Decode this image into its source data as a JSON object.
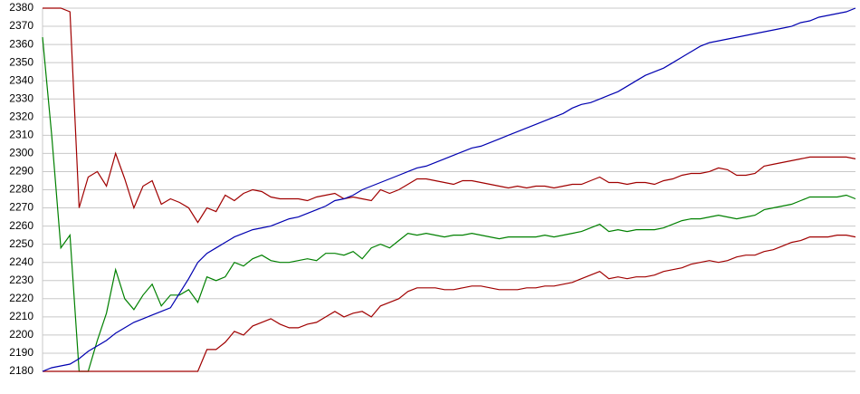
{
  "chart_data": {
    "type": "line",
    "x": [
      0,
      1,
      2,
      3,
      4,
      5,
      6,
      7,
      8,
      9,
      10,
      11,
      12,
      13,
      14,
      15,
      16,
      17,
      18,
      19,
      20,
      21,
      22,
      23,
      24,
      25,
      26,
      27,
      28,
      29,
      30,
      31,
      32,
      33,
      34,
      35,
      36,
      37,
      38,
      39,
      40,
      41,
      42,
      43,
      44,
      45,
      46,
      47,
      48,
      49,
      50,
      51,
      52,
      53,
      54,
      55,
      56,
      57,
      58,
      59,
      60,
      61,
      62,
      63,
      64,
      65,
      66,
      67,
      68,
      69,
      70,
      71,
      72,
      73,
      74,
      75,
      76,
      77,
      78,
      79,
      80,
      81,
      82,
      83,
      84,
      85,
      86,
      87,
      88,
      89
    ],
    "xlim": [
      0,
      89
    ],
    "ylim": [
      2180,
      2380
    ],
    "yticks": [
      2180,
      2190,
      2200,
      2210,
      2220,
      2230,
      2240,
      2250,
      2260,
      2270,
      2280,
      2290,
      2300,
      2310,
      2320,
      2330,
      2340,
      2350,
      2360,
      2370,
      2380
    ],
    "grid": true,
    "series": [
      {
        "color": "#a00000",
        "values": [
          2380,
          2380,
          2380,
          2378,
          2270,
          2287,
          2290,
          2282,
          2300,
          2286,
          2270,
          2282,
          2285,
          2272,
          2275,
          2273,
          2270,
          2262,
          2270,
          2268,
          2277,
          2274,
          2278,
          2280,
          2279,
          2276,
          2275,
          2275,
          2275,
          2274,
          2276,
          2277,
          2278,
          2275,
          2276,
          2275,
          2274,
          2280,
          2278,
          2280,
          2283,
          2286,
          2286,
          2285,
          2284,
          2283,
          2285,
          2285,
          2284,
          2283,
          2282,
          2281,
          2282,
          2281,
          2282,
          2282,
          2281,
          2282,
          2283,
          2283,
          2285,
          2287,
          2284,
          2284,
          2283,
          2284,
          2284,
          2283,
          2285,
          2286,
          2288,
          2289,
          2289,
          2290,
          2292,
          2291,
          2288,
          2288,
          2289,
          2293,
          2294,
          2295,
          2296,
          2297,
          2298,
          2298,
          2298,
          2298,
          2298,
          2297
        ]
      },
      {
        "color": "#008000",
        "values": [
          2364,
          2310,
          2248,
          2255,
          2180,
          2180,
          2197,
          2212,
          2236,
          2220,
          2214,
          2222,
          2228,
          2216,
          2222,
          2222,
          2225,
          2218,
          2232,
          2230,
          2232,
          2240,
          2238,
          2242,
          2244,
          2241,
          2240,
          2240,
          2241,
          2242,
          2241,
          2245,
          2245,
          2244,
          2246,
          2242,
          2248,
          2250,
          2248,
          2252,
          2256,
          2255,
          2256,
          2255,
          2254,
          2255,
          2255,
          2256,
          2255,
          2254,
          2253,
          2254,
          2254,
          2254,
          2254,
          2255,
          2254,
          2255,
          2256,
          2257,
          2259,
          2261,
          2257,
          2258,
          2257,
          2258,
          2258,
          2258,
          2259,
          2261,
          2263,
          2264,
          2264,
          2265,
          2266,
          2265,
          2264,
          2265,
          2266,
          2269,
          2270,
          2271,
          2272,
          2274,
          2276,
          2276,
          2276,
          2276,
          2277,
          2275
        ]
      },
      {
        "color": "#a00000",
        "values": [
          2180,
          2180,
          2180,
          2180,
          2180,
          2180,
          2180,
          2180,
          2180,
          2180,
          2180,
          2180,
          2180,
          2180,
          2180,
          2180,
          2180,
          2180,
          2192,
          2192,
          2196,
          2202,
          2200,
          2205,
          2207,
          2209,
          2206,
          2204,
          2204,
          2206,
          2207,
          2210,
          2213,
          2210,
          2212,
          2213,
          2210,
          2216,
          2218,
          2220,
          2224,
          2226,
          2226,
          2226,
          2225,
          2225,
          2226,
          2227,
          2227,
          2226,
          2225,
          2225,
          2225,
          2226,
          2226,
          2227,
          2227,
          2228,
          2229,
          2231,
          2233,
          2235,
          2231,
          2232,
          2231,
          2232,
          2232,
          2233,
          2235,
          2236,
          2237,
          2239,
          2240,
          2241,
          2240,
          2241,
          2243,
          2244,
          2244,
          2246,
          2247,
          2249,
          2251,
          2252,
          2254,
          2254,
          2254,
          2255,
          2255,
          2254
        ]
      },
      {
        "color": "#0000b0",
        "values": [
          2180,
          2182,
          2183,
          2184,
          2187,
          2191,
          2194,
          2197,
          2201,
          2204,
          2207,
          2209,
          2211,
          2213,
          2215,
          2223,
          2231,
          2240,
          2245,
          2248,
          2251,
          2254,
          2256,
          2258,
          2259,
          2260,
          2262,
          2264,
          2265,
          2267,
          2269,
          2271,
          2274,
          2275,
          2277,
          2280,
          2282,
          2284,
          2286,
          2288,
          2290,
          2292,
          2293,
          2295,
          2297,
          2299,
          2301,
          2303,
          2304,
          2306,
          2308,
          2310,
          2312,
          2314,
          2316,
          2318,
          2320,
          2322,
          2325,
          2327,
          2328,
          2330,
          2332,
          2334,
          2337,
          2340,
          2343,
          2345,
          2347,
          2350,
          2353,
          2356,
          2359,
          2361,
          2362,
          2363,
          2364,
          2365,
          2366,
          2367,
          2368,
          2369,
          2370,
          2372,
          2373,
          2375,
          2376,
          2377,
          2378,
          2380
        ]
      }
    ]
  }
}
